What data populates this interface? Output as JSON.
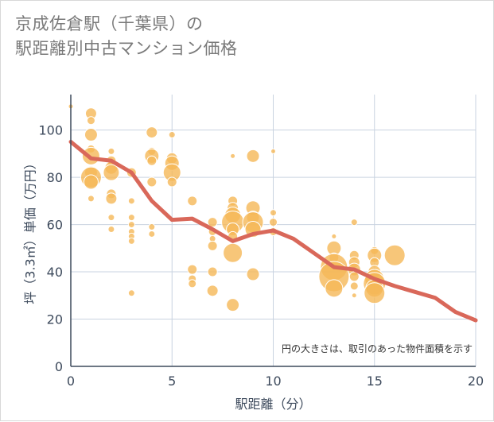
{
  "title_line1": "京成佐倉駅（千葉県）の",
  "title_line2": "駅距離別中古マンション価格",
  "chart_data": {
    "type": "scatter",
    "title": "京成佐倉駅（千葉県）の駅距離別中古マンション価格",
    "xlabel": "駅距離（分）",
    "ylabel": "坪（3.3㎡）単価（万円）",
    "xlim": [
      0,
      20
    ],
    "ylim": [
      0,
      115
    ],
    "xticks": [
      0,
      5,
      10,
      15,
      20
    ],
    "yticks": [
      0,
      20,
      40,
      60,
      80,
      100
    ],
    "grid": true,
    "note": "円の大きさは、取引のあった物件面積を示す",
    "bubble_color": "#f5b858",
    "line_color": "#d9685a",
    "bubbles": [
      {
        "x": 0,
        "y": 110,
        "s": 3
      },
      {
        "x": 1,
        "y": 107,
        "s": 7
      },
      {
        "x": 1,
        "y": 104,
        "s": 5
      },
      {
        "x": 1,
        "y": 98,
        "s": 8
      },
      {
        "x": 1,
        "y": 92,
        "s": 5
      },
      {
        "x": 1,
        "y": 89,
        "s": 11
      },
      {
        "x": 1,
        "y": 82,
        "s": 8
      },
      {
        "x": 1,
        "y": 80,
        "s": 13
      },
      {
        "x": 1,
        "y": 78,
        "s": 9
      },
      {
        "x": 1,
        "y": 71,
        "s": 4
      },
      {
        "x": 2,
        "y": 91,
        "s": 4
      },
      {
        "x": 2,
        "y": 87,
        "s": 6
      },
      {
        "x": 2,
        "y": 84,
        "s": 8
      },
      {
        "x": 2,
        "y": 82,
        "s": 10
      },
      {
        "x": 2,
        "y": 73,
        "s": 6
      },
      {
        "x": 2,
        "y": 71,
        "s": 7
      },
      {
        "x": 2,
        "y": 63,
        "s": 4
      },
      {
        "x": 2,
        "y": 58,
        "s": 4
      },
      {
        "x": 3,
        "y": 82,
        "s": 6
      },
      {
        "x": 3,
        "y": 70,
        "s": 4
      },
      {
        "x": 3,
        "y": 63,
        "s": 4
      },
      {
        "x": 3,
        "y": 60,
        "s": 4
      },
      {
        "x": 3,
        "y": 57,
        "s": 4
      },
      {
        "x": 3,
        "y": 55,
        "s": 4
      },
      {
        "x": 3,
        "y": 53,
        "s": 4
      },
      {
        "x": 3,
        "y": 31,
        "s": 4
      },
      {
        "x": 4,
        "y": 99,
        "s": 7
      },
      {
        "x": 4,
        "y": 91,
        "s": 5
      },
      {
        "x": 4,
        "y": 89,
        "s": 9
      },
      {
        "x": 4,
        "y": 87,
        "s": 6
      },
      {
        "x": 4,
        "y": 78,
        "s": 6
      },
      {
        "x": 4,
        "y": 59,
        "s": 4
      },
      {
        "x": 4,
        "y": 56,
        "s": 4
      },
      {
        "x": 5,
        "y": 98,
        "s": 4
      },
      {
        "x": 5,
        "y": 88,
        "s": 7
      },
      {
        "x": 5,
        "y": 86,
        "s": 9
      },
      {
        "x": 5,
        "y": 82,
        "s": 11
      },
      {
        "x": 5,
        "y": 78,
        "s": 6
      },
      {
        "x": 6,
        "y": 70,
        "s": 6
      },
      {
        "x": 6,
        "y": 41,
        "s": 6
      },
      {
        "x": 6,
        "y": 37,
        "s": 5
      },
      {
        "x": 6,
        "y": 35,
        "s": 5
      },
      {
        "x": 7,
        "y": 61,
        "s": 6
      },
      {
        "x": 7,
        "y": 57,
        "s": 5
      },
      {
        "x": 7,
        "y": 54,
        "s": 4
      },
      {
        "x": 7,
        "y": 51,
        "s": 6
      },
      {
        "x": 7,
        "y": 40,
        "s": 6
      },
      {
        "x": 7,
        "y": 32,
        "s": 7
      },
      {
        "x": 8,
        "y": 89,
        "s": 3
      },
      {
        "x": 8,
        "y": 70,
        "s": 6
      },
      {
        "x": 8,
        "y": 67,
        "s": 7
      },
      {
        "x": 8,
        "y": 64,
        "s": 10
      },
      {
        "x": 8,
        "y": 61,
        "s": 14
      },
      {
        "x": 8,
        "y": 58,
        "s": 8
      },
      {
        "x": 8,
        "y": 55,
        "s": 6
      },
      {
        "x": 8,
        "y": 48,
        "s": 12
      },
      {
        "x": 8,
        "y": 26,
        "s": 8
      },
      {
        "x": 9,
        "y": 89,
        "s": 8
      },
      {
        "x": 9,
        "y": 67,
        "s": 9
      },
      {
        "x": 9,
        "y": 63,
        "s": 8
      },
      {
        "x": 9,
        "y": 61,
        "s": 13
      },
      {
        "x": 9,
        "y": 58,
        "s": 10
      },
      {
        "x": 9,
        "y": 39,
        "s": 8
      },
      {
        "x": 10,
        "y": 91,
        "s": 3
      },
      {
        "x": 10,
        "y": 65,
        "s": 4
      },
      {
        "x": 10,
        "y": 61,
        "s": 5
      },
      {
        "x": 10,
        "y": 57,
        "s": 5
      },
      {
        "x": 13,
        "y": 55,
        "s": 3
      },
      {
        "x": 13,
        "y": 50,
        "s": 9
      },
      {
        "x": 13,
        "y": 46,
        "s": 6
      },
      {
        "x": 13,
        "y": 42,
        "s": 17
      },
      {
        "x": 13,
        "y": 38,
        "s": 19
      },
      {
        "x": 13,
        "y": 33,
        "s": 11
      },
      {
        "x": 14,
        "y": 61,
        "s": 4
      },
      {
        "x": 14,
        "y": 47,
        "s": 6
      },
      {
        "x": 14,
        "y": 44,
        "s": 7
      },
      {
        "x": 14,
        "y": 41,
        "s": 8
      },
      {
        "x": 14,
        "y": 38,
        "s": 6
      },
      {
        "x": 14,
        "y": 34,
        "s": 5
      },
      {
        "x": 14,
        "y": 30,
        "s": 3
      },
      {
        "x": 15,
        "y": 49,
        "s": 5
      },
      {
        "x": 15,
        "y": 47,
        "s": 9
      },
      {
        "x": 15,
        "y": 44,
        "s": 6
      },
      {
        "x": 15,
        "y": 40,
        "s": 8
      },
      {
        "x": 15,
        "y": 37,
        "s": 12
      },
      {
        "x": 15,
        "y": 35,
        "s": 14
      },
      {
        "x": 15,
        "y": 33,
        "s": 11
      },
      {
        "x": 15,
        "y": 31,
        "s": 13
      },
      {
        "x": 16,
        "y": 47,
        "s": 13
      }
    ],
    "series": [
      {
        "x": [
          0,
          1,
          2,
          3,
          4,
          5,
          6,
          7,
          8,
          9,
          10,
          11,
          12,
          13,
          14,
          15,
          16,
          17,
          18,
          19,
          20
        ],
        "y": [
          95,
          88,
          87,
          82,
          70,
          62,
          62.5,
          58,
          53,
          56,
          57.5,
          54,
          48,
          42,
          41,
          37,
          34,
          31.5,
          29,
          23,
          19.5
        ]
      }
    ]
  }
}
